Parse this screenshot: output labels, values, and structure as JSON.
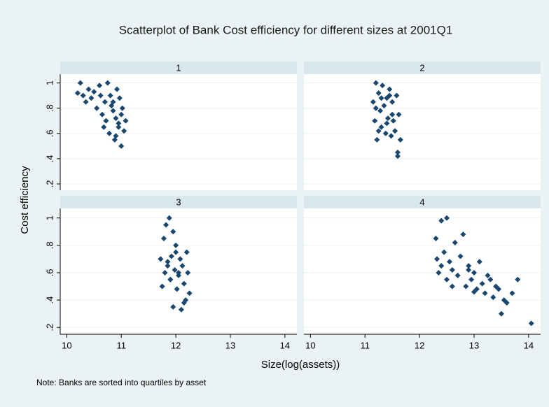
{
  "chart_data": {
    "type": "scatter",
    "title": "Scatterplot of Bank Cost efficiency for different sizes at 2001Q1",
    "xlabel": "Size(log(assets))",
    "ylabel": "Cost efficiency",
    "note": "Note: Banks are sorted into quartiles by asset",
    "xlim": [
      9.88,
      14.22
    ],
    "ylim": [
      0.15,
      1.07
    ],
    "xticks": [
      10,
      11,
      12,
      13,
      14
    ],
    "yticks": [
      {
        "value": 0.2,
        "label": ".2"
      },
      {
        "value": 0.4,
        "label": ".4"
      },
      {
        "value": 0.6,
        "label": ".6"
      },
      {
        "value": 0.8,
        "label": ".8"
      },
      1
    ],
    "grid": true,
    "color": "#1a476f",
    "panels": [
      {
        "title": "1",
        "x": [
          10.2,
          10.25,
          10.3,
          10.35,
          10.4,
          10.45,
          10.5,
          10.55,
          10.6,
          10.65,
          10.7,
          10.72,
          10.75,
          10.78,
          10.8,
          10.82,
          10.85,
          10.88,
          10.9,
          10.92,
          10.95,
          10.97,
          11.0,
          11.02,
          11.05,
          11.08,
          10.62,
          10.68,
          10.9,
          11.0,
          10.85,
          10.95
        ],
        "y": [
          0.92,
          1.0,
          0.9,
          0.85,
          0.95,
          0.88,
          0.93,
          0.8,
          0.98,
          0.75,
          0.85,
          0.7,
          1.0,
          0.6,
          0.9,
          0.82,
          0.78,
          0.55,
          0.72,
          0.95,
          0.65,
          0.88,
          0.5,
          0.8,
          0.62,
          0.7,
          0.9,
          0.65,
          0.58,
          0.75,
          0.85,
          0.68
        ]
      },
      {
        "title": "2",
        "x": [
          11.15,
          11.18,
          11.2,
          11.22,
          11.25,
          11.28,
          11.3,
          11.32,
          11.35,
          11.38,
          11.4,
          11.42,
          11.45,
          11.48,
          11.5,
          11.52,
          11.55,
          11.58,
          11.6,
          11.62,
          11.65,
          11.2,
          11.3,
          11.4,
          11.5,
          11.6,
          11.25,
          11.45
        ],
        "y": [
          0.85,
          0.7,
          1.0,
          0.55,
          0.92,
          0.78,
          0.65,
          0.98,
          0.82,
          0.6,
          0.88,
          0.72,
          0.95,
          0.58,
          0.85,
          0.7,
          0.62,
          0.9,
          0.42,
          0.75,
          0.55,
          0.8,
          0.88,
          0.68,
          0.75,
          0.45,
          0.62,
          0.9
        ]
      },
      {
        "title": "3",
        "x": [
          11.72,
          11.75,
          11.78,
          11.8,
          11.82,
          11.85,
          11.88,
          11.9,
          11.92,
          11.95,
          11.98,
          12.0,
          12.02,
          12.05,
          12.08,
          12.1,
          12.12,
          12.15,
          12.18,
          12.2,
          12.22,
          12.25,
          11.85,
          11.95,
          12.05,
          12.15,
          11.9,
          12.0
        ],
        "y": [
          0.7,
          0.5,
          0.85,
          0.6,
          0.95,
          0.65,
          1.0,
          0.55,
          0.72,
          0.35,
          0.62,
          0.8,
          0.48,
          0.58,
          0.7,
          0.33,
          0.65,
          0.52,
          0.4,
          0.75,
          0.6,
          0.45,
          0.68,
          0.9,
          0.6,
          0.38,
          0.55,
          0.75
        ]
      },
      {
        "title": "4",
        "x": [
          12.3,
          12.32,
          12.35,
          12.4,
          12.45,
          12.5,
          12.5,
          12.55,
          12.6,
          12.65,
          12.7,
          12.75,
          12.8,
          12.85,
          12.9,
          12.95,
          13.0,
          13.05,
          13.1,
          13.15,
          13.2,
          13.25,
          13.3,
          13.35,
          13.4,
          13.45,
          13.5,
          13.55,
          13.6,
          13.7,
          13.8,
          14.05,
          12.4,
          12.6,
          12.9,
          13.0
        ],
        "y": [
          0.85,
          0.7,
          0.6,
          0.98,
          0.75,
          1.0,
          0.55,
          0.68,
          0.62,
          0.82,
          0.58,
          0.72,
          0.88,
          0.5,
          0.65,
          0.55,
          0.6,
          0.48,
          0.68,
          0.52,
          0.45,
          0.58,
          0.55,
          0.42,
          0.5,
          0.48,
          0.3,
          0.4,
          0.38,
          0.45,
          0.55,
          0.23,
          0.65,
          0.5,
          0.62,
          0.46
        ]
      }
    ]
  }
}
